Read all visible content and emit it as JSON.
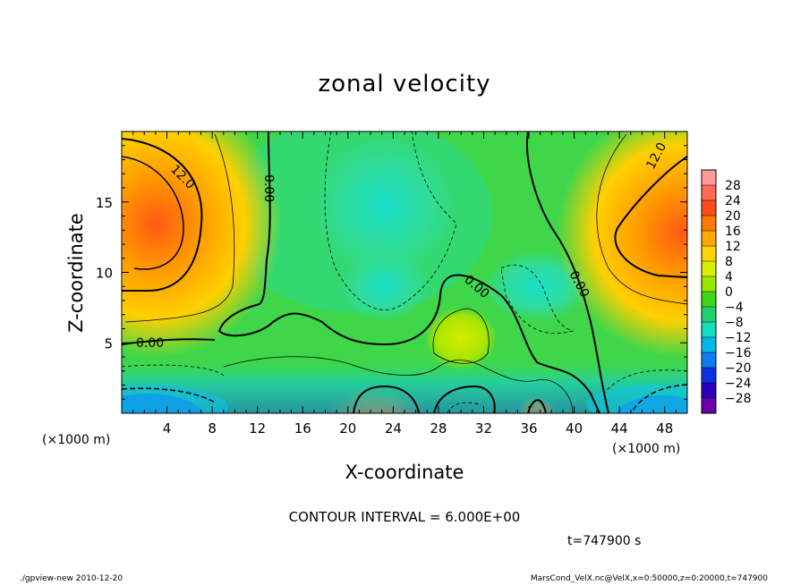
{
  "chart_data": {
    "type": "heatmap",
    "title": "zonal velocity",
    "xlabel": "X-coordinate",
    "ylabel": "Z-coordinate",
    "x_unit": "(×1000 m)",
    "y_unit": "(×1000 m)",
    "xlim": [
      0,
      50
    ],
    "ylim": [
      0,
      20
    ],
    "x_ticks": [
      4,
      8,
      12,
      16,
      20,
      24,
      28,
      32,
      36,
      40,
      44,
      48
    ],
    "y_ticks": [
      5,
      10,
      15
    ],
    "colorbar": {
      "labels": [
        28,
        24,
        20,
        16,
        12,
        8,
        4,
        0,
        -4,
        -8,
        -12,
        -16,
        -20,
        -24,
        -28
      ],
      "colors": [
        "#ff9a9a",
        "#ff6a55",
        "#ff4a1a",
        "#ff7a00",
        "#ffaa00",
        "#ffd400",
        "#d9ef00",
        "#9ae600",
        "#3fd61a",
        "#1ed070",
        "#16dcc0",
        "#00b8e8",
        "#0c7cf0",
        "#0a32e0",
        "#2a00b8",
        "#6a00a8"
      ]
    },
    "contour_interval_text": "CONTOUR INTERVAL = 6.000E+00",
    "contour_labels": [
      "12.0",
      "0.00",
      "0.00",
      "0.00",
      "0.00",
      "12.0"
    ],
    "time_text": "t=747900 s"
  },
  "footer": {
    "left": "./gpview-new   2010-12-20",
    "right": "MarsCond_VelX.nc@VelX,x=0:50000,z=0:20000,t=747900"
  }
}
